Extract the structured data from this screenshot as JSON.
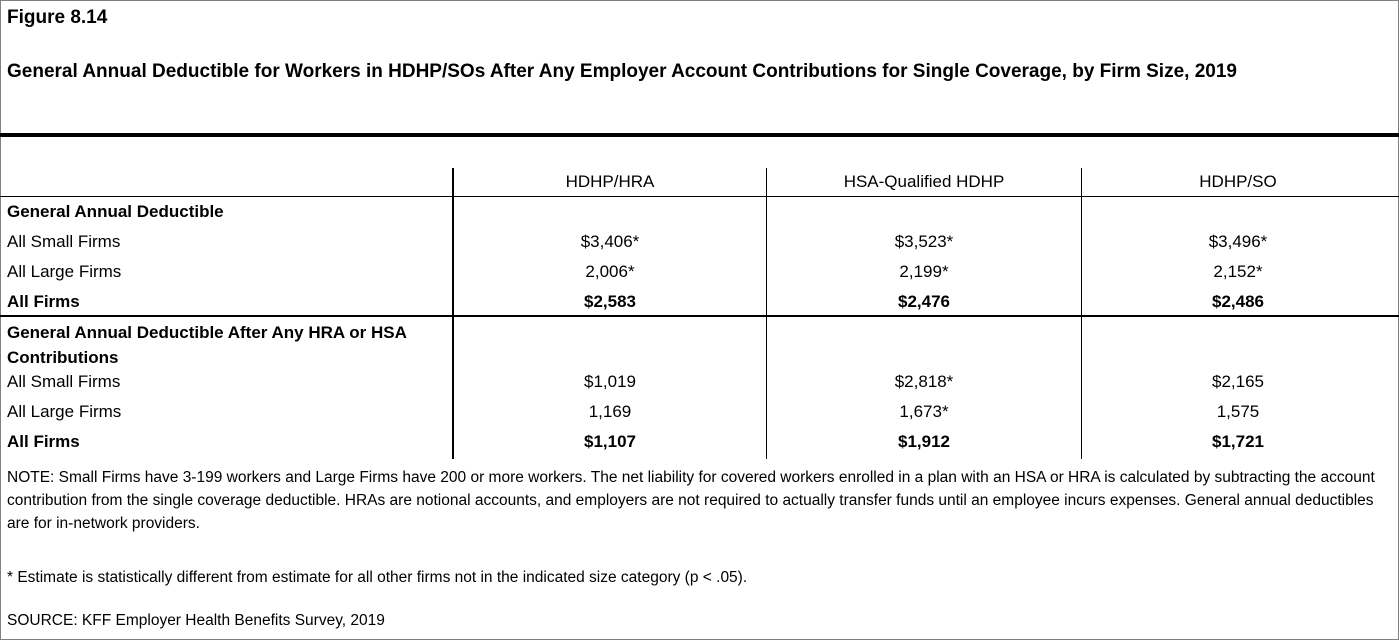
{
  "figure_label": "Figure 8.14",
  "title": "General Annual Deductible for Workers in HDHP/SOs After Any Employer Account Contributions for Single Coverage, by Firm Size, 2019",
  "chart_data": {
    "type": "table",
    "columns": [
      "HDHP/HRA",
      "HSA-Qualified HDHP",
      "HDHP/SO"
    ],
    "sections": [
      {
        "heading": "General Annual Deductible",
        "rows": [
          {
            "label": "All Small Firms",
            "values": [
              "$3,406*",
              "$3,523*",
              "$3,496*"
            ],
            "bold": false
          },
          {
            "label": "All Large Firms",
            "values": [
              "2,006*",
              "2,199*",
              "2,152*"
            ],
            "bold": false
          },
          {
            "label": "All Firms",
            "values": [
              "$2,583",
              "$2,476",
              "$2,486"
            ],
            "bold": true
          }
        ]
      },
      {
        "heading": "General Annual Deductible After Any HRA or HSA Contributions",
        "rows": [
          {
            "label": "All Small Firms",
            "values": [
              "$1,019",
              "$2,818*",
              "$2,165"
            ],
            "bold": false
          },
          {
            "label": "All Large Firms",
            "values": [
              "1,169",
              "1,673*",
              "1,575"
            ],
            "bold": false
          },
          {
            "label": "All Firms",
            "values": [
              "$1,107",
              "$1,912",
              "$1,721"
            ],
            "bold": true
          }
        ]
      }
    ]
  },
  "notes": {
    "note": "NOTE: Small Firms have 3-199 workers and Large Firms have 200 or more workers. The net liability for covered workers enrolled in a plan with an HSA or HRA is calculated by subtracting the account contribution from the single coverage deductible. HRAs are notional accounts, and employers are not required to actually transfer funds until an employee incurs expenses. General annual deductibles are for in-network providers.",
    "asterisk": " * Estimate is statistically different from estimate for all other firms not in the indicated size category (p < .05).",
    "source": "SOURCE: KFF Employer Health Benefits Survey, 2019"
  }
}
